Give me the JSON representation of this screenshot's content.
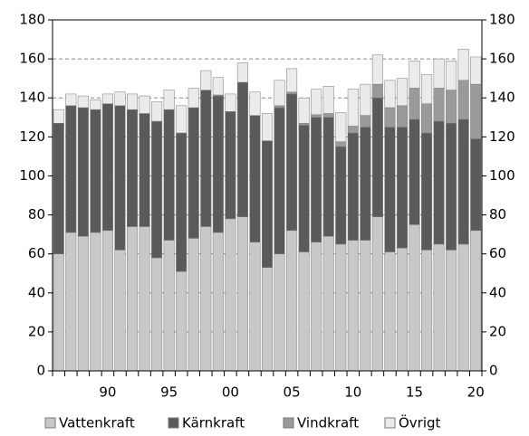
{
  "chart_data": {
    "type": "bar",
    "stacked": true,
    "categories": [
      null,
      null,
      null,
      null,
      "90",
      null,
      null,
      null,
      null,
      "95",
      null,
      null,
      null,
      null,
      "00",
      null,
      null,
      null,
      null,
      "05",
      null,
      null,
      null,
      null,
      "10",
      null,
      null,
      null,
      null,
      "15",
      null,
      null,
      null,
      null,
      "20"
    ],
    "series": [
      {
        "name": "Vattenkraft",
        "color": "#c8c8c8",
        "values": [
          60,
          71,
          69,
          71,
          72,
          62,
          74,
          74,
          58,
          67,
          51,
          68,
          74,
          71,
          78,
          79,
          66,
          53,
          60,
          72,
          61,
          66,
          69,
          65,
          67,
          67,
          79,
          61,
          63,
          75,
          62,
          65,
          62,
          65,
          72
        ]
      },
      {
        "name": "Kärnkraft",
        "color": "#5a5a5a",
        "values": [
          67,
          65,
          66,
          63,
          65,
          74,
          60,
          58,
          70,
          67,
          71,
          67,
          70,
          70,
          55,
          69,
          65,
          65,
          75,
          70,
          65,
          64,
          61,
          50,
          55,
          58,
          61,
          64,
          62,
          54,
          60,
          63,
          65,
          64,
          47
        ]
      },
      {
        "name": "Vindkraft",
        "color": "#9a9a9a",
        "values": [
          0,
          0,
          0,
          0,
          0,
          0,
          0,
          0,
          0,
          0,
          0,
          0,
          0,
          0.5,
          0,
          0,
          0,
          0,
          1,
          1,
          1,
          1.4,
          2,
          2.5,
          3.5,
          6,
          7,
          10,
          11,
          16,
          15,
          17,
          17,
          20,
          28
        ]
      },
      {
        "name": "Övrigt",
        "color": "#ebebeb",
        "values": [
          7,
          6,
          6,
          5,
          5,
          7,
          8,
          9,
          10,
          10,
          14,
          10,
          10,
          9,
          9,
          10,
          12,
          14,
          13,
          12,
          13,
          13,
          14,
          15,
          19,
          16,
          15,
          14,
          14,
          14,
          15,
          15,
          15,
          16,
          14
        ]
      }
    ],
    "ylim": [
      0,
      180
    ],
    "yticks": [
      0,
      20,
      40,
      60,
      80,
      100,
      120,
      140,
      160,
      180
    ],
    "y2lim": [
      0,
      180
    ],
    "y2ticks": [
      0,
      20,
      40,
      60,
      80,
      100,
      120,
      140,
      160,
      180
    ],
    "grid": true,
    "legend": "bottom"
  }
}
